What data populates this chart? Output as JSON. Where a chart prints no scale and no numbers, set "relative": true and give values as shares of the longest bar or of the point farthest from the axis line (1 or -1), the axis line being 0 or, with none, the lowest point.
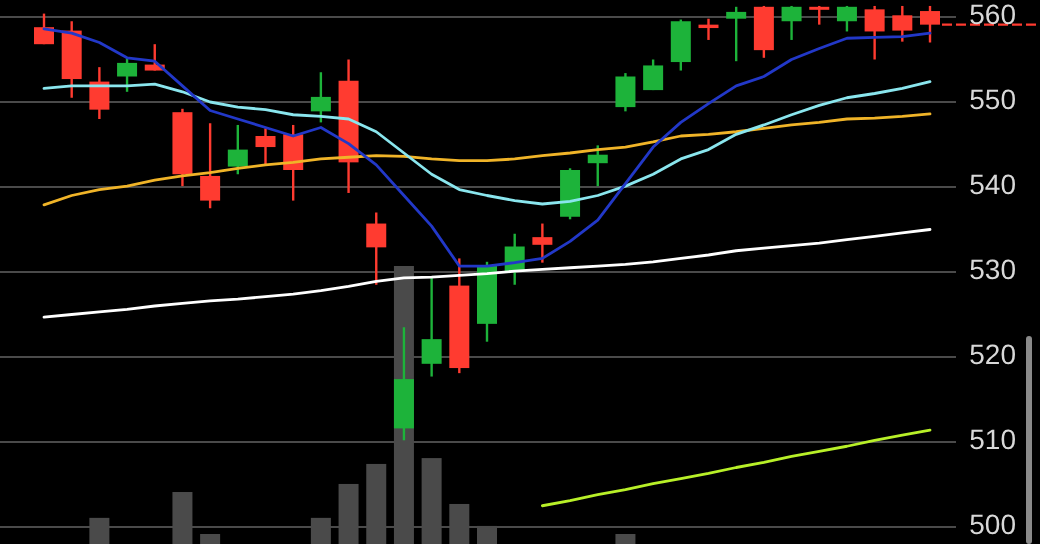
{
  "chart_data": [
    {
      "type": "candlestick",
      "categories": [
        null,
        null,
        null,
        null,
        null,
        null,
        null,
        null,
        null,
        null,
        null,
        null,
        null,
        null,
        null,
        null,
        null,
        null,
        null,
        null,
        null,
        null,
        null,
        null,
        null,
        null,
        null,
        null,
        null,
        null,
        null,
        null,
        null
      ],
      "ohlc": [
        [
          558.8,
          560.4,
          556.8,
          556.8
        ],
        [
          558.4,
          559.5,
          550.5,
          552.7
        ],
        [
          552.4,
          554.1,
          548.0,
          549.1
        ],
        [
          553.0,
          555.2,
          551.2,
          554.6
        ],
        [
          554.4,
          556.8,
          553.7,
          553.7
        ],
        [
          548.8,
          549.2,
          540.1,
          541.5
        ],
        [
          541.3,
          547.5,
          537.5,
          538.4
        ],
        [
          542.4,
          547.3,
          541.5,
          544.4
        ],
        [
          546.0,
          546.9,
          542.6,
          544.7
        ],
        [
          546.2,
          547.3,
          538.4,
          542.0
        ],
        [
          548.9,
          553.5,
          547.6,
          550.6
        ],
        [
          552.5,
          555.0,
          539.3,
          542.9
        ],
        [
          535.7,
          537.0,
          528.5,
          532.9
        ],
        [
          511.6,
          523.5,
          510.2,
          517.4
        ],
        [
          519.2,
          529.3,
          517.7,
          522.1
        ],
        [
          528.4,
          531.6,
          518.1,
          518.7
        ],
        [
          523.9,
          531.2,
          521.8,
          530.7
        ],
        [
          530.0,
          534.5,
          528.5,
          533.0
        ],
        [
          534.1,
          535.7,
          531.1,
          533.2
        ],
        [
          536.5,
          542.2,
          536.2,
          542.0
        ],
        [
          542.8,
          544.9,
          540.1,
          543.8
        ],
        [
          549.4,
          553.4,
          548.9,
          553.0
        ],
        [
          551.4,
          555.0,
          551.4,
          554.3
        ],
        [
          554.7,
          559.7,
          553.7,
          559.5
        ],
        [
          559.1,
          559.8,
          557.3,
          558.7
        ],
        [
          559.8,
          561.2,
          554.8,
          560.6
        ],
        [
          561.2,
          561.3,
          555.2,
          556.1
        ],
        [
          559.5,
          561.3,
          557.3,
          561.2
        ],
        [
          561.2,
          561.3,
          559.1,
          560.9
        ],
        [
          559.5,
          561.3,
          558.3,
          561.2
        ],
        [
          560.9,
          561.3,
          555.0,
          558.3
        ],
        [
          560.2,
          561.3,
          557.1,
          558.4
        ],
        [
          560.7,
          561.3,
          557.0,
          559.1
        ]
      ],
      "series": [
        {
          "type": "line",
          "color": "#ffffff",
          "values": [
            524.7,
            525.0,
            525.3,
            525.6,
            526.0,
            526.3,
            526.6,
            526.8,
            527.1,
            527.4,
            527.8,
            528.3,
            528.9,
            529.3,
            529.4,
            529.6,
            529.8,
            530.1,
            530.3,
            530.5,
            530.7,
            530.9,
            531.2,
            531.6,
            532.0,
            532.5,
            532.8,
            533.1,
            533.4,
            533.8,
            534.2,
            534.6,
            535.0
          ]
        },
        {
          "type": "line",
          "color": "#f0b428",
          "values": [
            537.9,
            539.0,
            539.7,
            540.1,
            540.8,
            541.3,
            541.7,
            542.2,
            542.6,
            542.9,
            543.3,
            543.5,
            543.7,
            543.6,
            543.3,
            543.1,
            543.1,
            543.3,
            543.7,
            544.0,
            544.4,
            544.7,
            545.3,
            546.0,
            546.2,
            546.5,
            546.9,
            547.3,
            547.6,
            548.0,
            548.1,
            548.3,
            548.6
          ]
        },
        {
          "type": "line",
          "color": "#8ae6ee",
          "values": [
            551.6,
            551.9,
            551.9,
            551.9,
            552.1,
            551.2,
            550.0,
            549.4,
            549.1,
            548.5,
            548.3,
            548.0,
            546.5,
            544.0,
            541.5,
            539.7,
            539.0,
            538.4,
            538.0,
            538.3,
            539.0,
            540.1,
            541.5,
            543.3,
            544.4,
            546.2,
            547.3,
            548.5,
            549.6,
            550.5,
            551.0,
            551.6,
            552.4
          ]
        },
        {
          "type": "line",
          "color": "#2238c8",
          "values": [
            558.6,
            558.1,
            557.0,
            555.2,
            554.8,
            551.9,
            549.0,
            548.0,
            547.0,
            546.0,
            547.0,
            545.1,
            542.6,
            539.0,
            535.4,
            530.7,
            530.7,
            531.1,
            531.6,
            533.6,
            536.1,
            540.4,
            544.7,
            547.6,
            549.8,
            551.9,
            553.0,
            555.0,
            556.3,
            557.5,
            557.6,
            557.7,
            558.1
          ]
        },
        {
          "type": "line",
          "color": "#b8f028",
          "values": [
            null,
            null,
            null,
            null,
            null,
            null,
            null,
            null,
            null,
            null,
            null,
            null,
            null,
            null,
            null,
            null,
            null,
            null,
            502.5,
            503.1,
            503.8,
            504.4,
            505.1,
            505.7,
            506.3,
            507.0,
            507.6,
            508.3,
            508.9,
            509.5,
            510.2,
            510.8,
            511.4
          ]
        }
      ],
      "ylim": [
        498,
        562
      ],
      "yticks": [
        500,
        510,
        520,
        530,
        540,
        550,
        560
      ],
      "grid": "y",
      "tick_labels": "y"
    },
    {
      "type": "bar",
      "relative": true,
      "color": "#4a4a4a",
      "categories": [
        null,
        null,
        null,
        null,
        null,
        null,
        null,
        null,
        null,
        null,
        null,
        null,
        null,
        null,
        null,
        null,
        null,
        null,
        null,
        null,
        null,
        null,
        null,
        null,
        null,
        null,
        null,
        null,
        null,
        null,
        null,
        null,
        null
      ],
      "values": [
        null,
        null,
        0.094,
        null,
        null,
        0.187,
        0.036,
        null,
        null,
        null,
        0.094,
        0.216,
        0.288,
        1,
        0.309,
        0.144,
        0.065,
        null,
        null,
        null,
        null,
        0.036,
        null,
        null,
        null,
        null,
        null,
        null,
        null,
        null,
        null,
        null,
        null
      ]
    }
  ]
}
